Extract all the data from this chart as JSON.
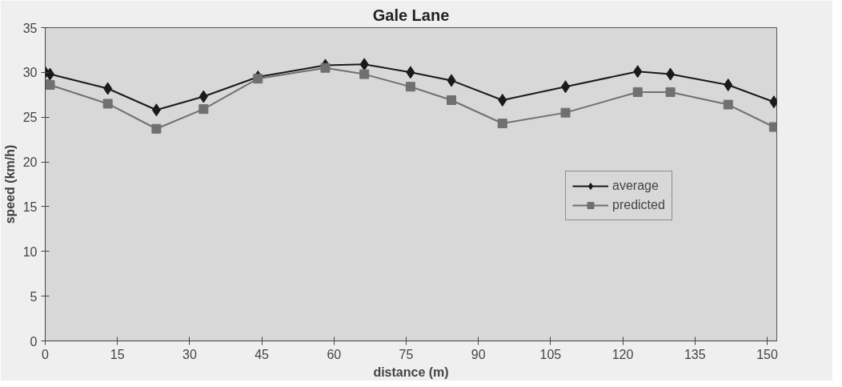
{
  "chart_data": {
    "type": "line",
    "title": "Gale Lane",
    "xlabel": "distance (m)",
    "ylabel": "speed (km/h)",
    "xlim": [
      0,
      152
    ],
    "ylim": [
      0,
      35
    ],
    "xticks": [
      0,
      15,
      30,
      45,
      60,
      75,
      90,
      105,
      120,
      135,
      150
    ],
    "yticks": [
      0,
      5,
      10,
      15,
      20,
      25,
      30,
      35
    ],
    "grid": false,
    "legend": "right",
    "series": [
      {
        "name": "average",
        "color": "#1a1a1a",
        "marker": "diamond",
        "x": [
          0,
          1,
          13.0,
          23.1,
          32.9,
          44.2,
          58.2,
          66.3,
          75.9,
          84.4,
          95.0,
          108.1,
          123.1,
          129.9,
          141.9,
          151.4
        ],
        "values": [
          30.0,
          29.8,
          28.2,
          25.8,
          27.3,
          29.5,
          30.8,
          30.9,
          30.0,
          29.1,
          26.9,
          28.4,
          30.1,
          29.8,
          28.6,
          26.7
        ]
      },
      {
        "name": "predicted",
        "color": "#707070",
        "marker": "square",
        "x": [
          0,
          1,
          13.0,
          23.1,
          32.9,
          44.2,
          58.2,
          66.3,
          75.9,
          84.4,
          95.0,
          108.1,
          123.1,
          129.9,
          141.9,
          151.4
        ],
        "values": [
          28.7,
          28.6,
          26.5,
          23.7,
          25.9,
          29.3,
          30.5,
          29.8,
          28.4,
          26.9,
          24.3,
          25.5,
          27.8,
          27.8,
          26.4,
          23.9
        ]
      }
    ]
  }
}
